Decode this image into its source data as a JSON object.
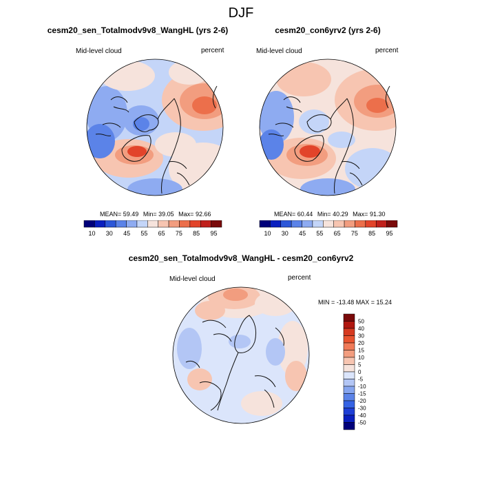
{
  "figure": {
    "title": "DJF"
  },
  "colors": {
    "absolute_scale": [
      "#00007a",
      "#0a1fbf",
      "#2c57d8",
      "#5b83e8",
      "#8eabf1",
      "#c4d5f8",
      "#f6e3dc",
      "#f7c5b1",
      "#f29d7f",
      "#ec6f4b",
      "#e2442a",
      "#c0201b",
      "#7a0a0a"
    ],
    "difference_scale": [
      "#00007a",
      "#0a1fbf",
      "#1e3fd6",
      "#3563e4",
      "#5b83e8",
      "#86a5ef",
      "#b3c6f5",
      "#dbe5fb",
      "#f6e3dc",
      "#f7c5b1",
      "#f29d7f",
      "#f07a58",
      "#e8532f",
      "#d63a20",
      "#b0170f",
      "#7a0a0a"
    ],
    "coastline": "#111111"
  },
  "chart_data": [
    {
      "type": "heatmap",
      "projection": "north polar stereographic",
      "title": "cesm20_sen_Totalmodv9v8_WangHL (yrs 2-6)",
      "left_label": "Mid-level cloud",
      "right_label": "percent",
      "stats": {
        "mean": "59.49",
        "min": "39.05",
        "max": "92.66"
      },
      "stats_labels": {
        "mean": "MEAN=",
        "min": "Min=",
        "max": "Max="
      },
      "colorbar": {
        "orientation": "horizontal",
        "levels": [
          "10",
          "30",
          "45",
          "55",
          "65",
          "75",
          "85",
          "95"
        ]
      }
    },
    {
      "type": "heatmap",
      "projection": "north polar stereographic",
      "title": "cesm20_con6yrv2 (yrs 2-6)",
      "left_label": "Mid-level cloud",
      "right_label": "percent",
      "stats": {
        "mean": "60.44",
        "min": "40.29",
        "max": "91.30"
      },
      "stats_labels": {
        "mean": "MEAN=",
        "min": "Min=",
        "max": "Max="
      },
      "colorbar": {
        "orientation": "horizontal",
        "levels": [
          "10",
          "30",
          "45",
          "55",
          "65",
          "75",
          "85",
          "95"
        ]
      }
    },
    {
      "type": "heatmap",
      "projection": "north polar stereographic",
      "title": "cesm20_sen_Totalmodv9v8_WangHL - cesm20_con6yrv2",
      "left_label": "Mid-level cloud",
      "right_label": "percent",
      "minmax_text": "MIN = -13.48 MAX =  15.24",
      "colorbar": {
        "orientation": "vertical",
        "levels": [
          "50",
          "40",
          "30",
          "20",
          "15",
          "10",
          "5",
          "0",
          "-5",
          "-10",
          "-15",
          "-20",
          "-30",
          "-40",
          "-50"
        ]
      }
    }
  ]
}
